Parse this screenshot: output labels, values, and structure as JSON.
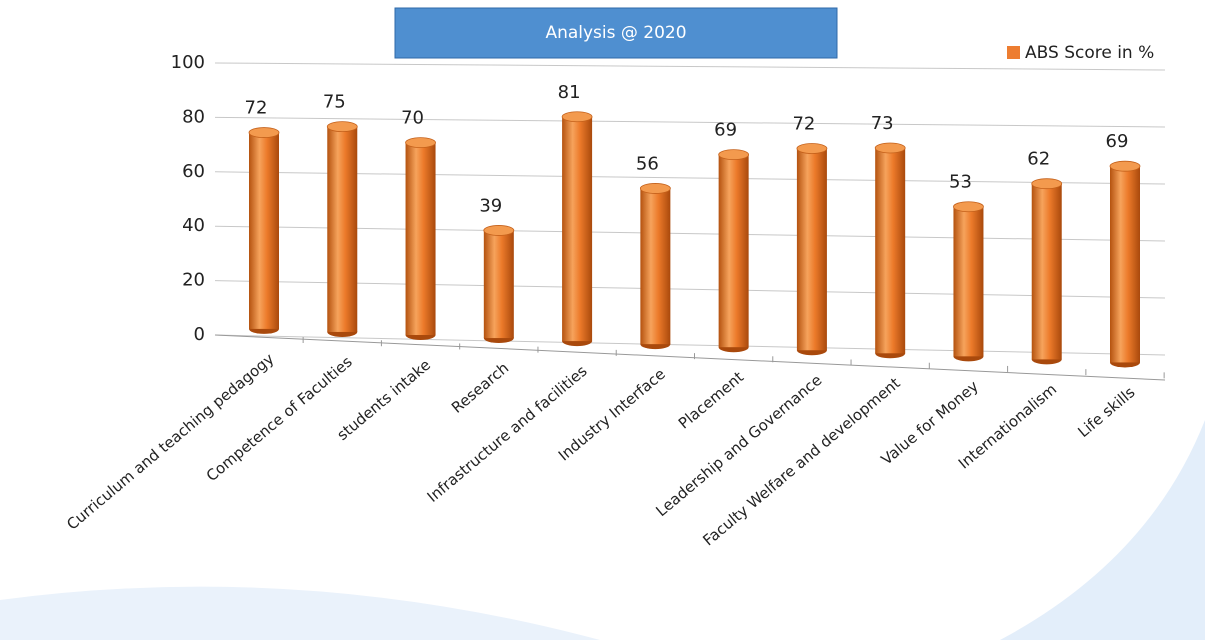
{
  "chart_data": {
    "type": "bar",
    "title": "Analysis @ 2020",
    "categories": [
      "Curriculum and teaching pedagogy",
      "Competence of Faculties",
      "students intake",
      "Research",
      "Infrastructure and facilities",
      "Industry Interface",
      "Placement",
      "Leadership and Governance",
      "Faculty Welfare and development",
      "Value  for Money",
      "Internationalism",
      "Life skills"
    ],
    "series": [
      {
        "name": "ABS Score in %",
        "color": "#ed7d31",
        "values": [
          72,
          75,
          70,
          39,
          81,
          56,
          69,
          72,
          73,
          53,
          62,
          69
        ]
      }
    ],
    "ylim": [
      0,
      100
    ],
    "yticks": [
      0,
      20,
      40,
      60,
      80,
      100
    ],
    "grid": true,
    "legend": "top-right"
  }
}
